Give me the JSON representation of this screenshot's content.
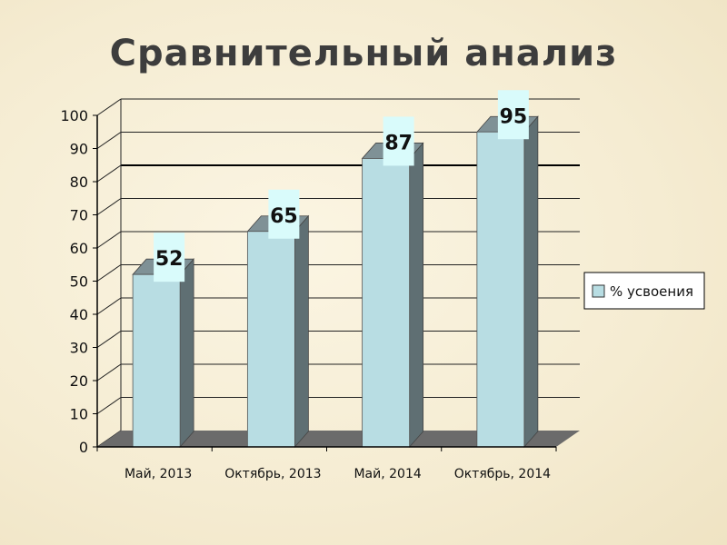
{
  "colors": {
    "bar_front": "#b8dde3",
    "bar_side": "#5f6f73",
    "bar_top": "#7f9196",
    "label_bg": "#d9fbfb",
    "floor": "#6b6b6b",
    "grid": "#222222",
    "highlight_grid": "#000000"
  },
  "chart_data": {
    "type": "bar",
    "title": "Сравнительный анализ",
    "categories": [
      "Май, 2013",
      "Октябрь, 2013",
      "Май, 2014",
      "Октябрь, 2014"
    ],
    "series": [
      {
        "name": "% усвоения",
        "values": [
          52,
          65,
          87,
          95
        ]
      }
    ],
    "data_labels": [
      "52",
      "65",
      "87",
      "95"
    ],
    "ylim": [
      0,
      100
    ],
    "yticks": [
      0,
      10,
      20,
      30,
      40,
      50,
      60,
      70,
      80,
      90,
      100
    ],
    "ytick_labels": [
      "0",
      "10",
      "20",
      "30",
      "40",
      "50",
      "60",
      "70",
      "80",
      "90",
      "100"
    ],
    "highlight_gridline": 80,
    "grid": true,
    "three_d": true,
    "legend": "right"
  }
}
